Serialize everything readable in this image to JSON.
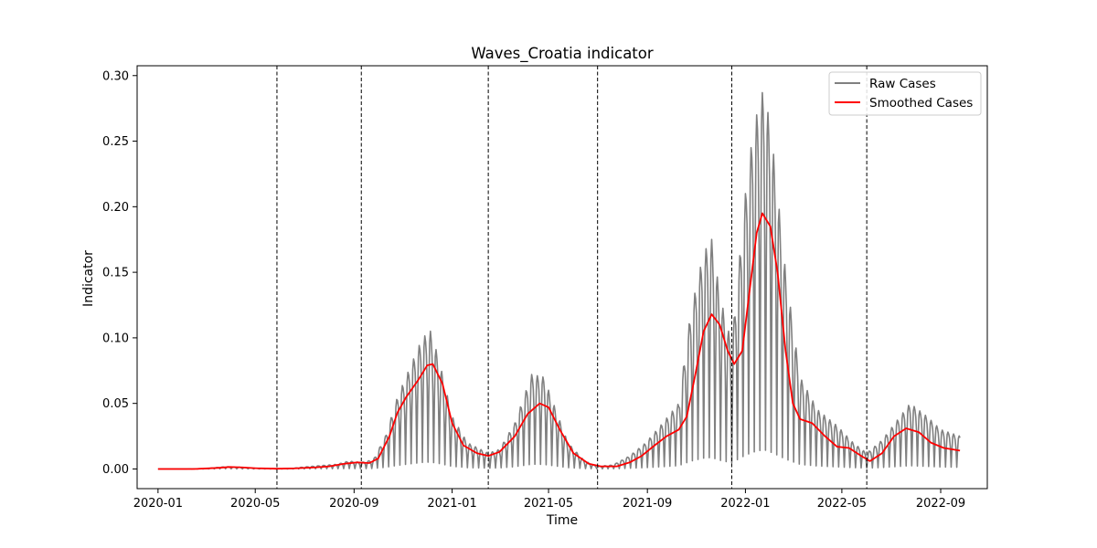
{
  "chart_data": {
    "type": "line",
    "title": "Waves_Croatia indicator",
    "xlabel": "Time",
    "ylabel": "Indicator",
    "x_range": [
      "2019-12-06",
      "2022-10-29"
    ],
    "ylim": [
      -0.015,
      0.3075
    ],
    "x_ticks": [
      "2020-01",
      "2020-05",
      "2020-09",
      "2021-01",
      "2021-05",
      "2021-09",
      "2022-01",
      "2022-05",
      "2022-09"
    ],
    "y_ticks": [
      "0.00",
      "0.05",
      "0.10",
      "0.15",
      "0.20",
      "0.25",
      "0.30"
    ],
    "grid": false,
    "legend_position": "top-right",
    "wave_boundaries": [
      "2020-05-28",
      "2020-09-10",
      "2021-02-15",
      "2021-07-01",
      "2021-12-15",
      "2022-06-01"
    ],
    "series": [
      {
        "name": "Raw Cases",
        "color": "#808080",
        "points": [
          [
            "2020-01-01",
            0.0
          ],
          [
            "2020-02-01",
            0.0
          ],
          [
            "2020-03-01",
            0.0003
          ],
          [
            "2020-03-25",
            0.0018
          ],
          [
            "2020-04-15",
            0.0012
          ],
          [
            "2020-05-01",
            0.0006
          ],
          [
            "2020-05-28",
            0.0002
          ],
          [
            "2020-06-15",
            0.0004
          ],
          [
            "2020-07-01",
            0.0015
          ],
          [
            "2020-07-20",
            0.0025
          ],
          [
            "2020-08-10",
            0.0035
          ],
          [
            "2020-08-25",
            0.006
          ],
          [
            "2020-09-10",
            0.005
          ],
          [
            "2020-09-25",
            0.007
          ],
          [
            "2020-10-10",
            0.025
          ],
          [
            "2020-10-25",
            0.055
          ],
          [
            "2020-11-10",
            0.078
          ],
          [
            "2020-11-25",
            0.1
          ],
          [
            "2020-12-05",
            0.105
          ],
          [
            "2020-12-15",
            0.085
          ],
          [
            "2021-01-01",
            0.04
          ],
          [
            "2021-01-20",
            0.02
          ],
          [
            "2021-02-15",
            0.012
          ],
          [
            "2021-03-01",
            0.015
          ],
          [
            "2021-03-20",
            0.035
          ],
          [
            "2021-04-10",
            0.072
          ],
          [
            "2021-04-25",
            0.07
          ],
          [
            "2021-05-10",
            0.045
          ],
          [
            "2021-05-25",
            0.02
          ],
          [
            "2021-06-15",
            0.006
          ],
          [
            "2021-07-01",
            0.002
          ],
          [
            "2021-07-20",
            0.003
          ],
          [
            "2021-08-10",
            0.01
          ],
          [
            "2021-08-30",
            0.02
          ],
          [
            "2021-09-20",
            0.035
          ],
          [
            "2021-10-10",
            0.05
          ],
          [
            "2021-10-25",
            0.12
          ],
          [
            "2021-11-10",
            0.165
          ],
          [
            "2021-11-20",
            0.175
          ],
          [
            "2021-12-01",
            0.13
          ],
          [
            "2021-12-15",
            0.095
          ],
          [
            "2022-01-01",
            0.21
          ],
          [
            "2022-01-10",
            0.255
          ],
          [
            "2022-01-20",
            0.285
          ],
          [
            "2022-01-25",
            0.29
          ],
          [
            "2022-02-05",
            0.24
          ],
          [
            "2022-02-20",
            0.15
          ],
          [
            "2022-03-10",
            0.07
          ],
          [
            "2022-04-01",
            0.045
          ],
          [
            "2022-04-25",
            0.033
          ],
          [
            "2022-05-15",
            0.02
          ],
          [
            "2022-06-01",
            0.012
          ],
          [
            "2022-06-20",
            0.022
          ],
          [
            "2022-07-10",
            0.038
          ],
          [
            "2022-07-25",
            0.05
          ],
          [
            "2022-08-15",
            0.04
          ],
          [
            "2022-09-01",
            0.03
          ],
          [
            "2022-09-25",
            0.025
          ]
        ]
      },
      {
        "name": "Smoothed Cases",
        "color": "#ff0000",
        "points": [
          [
            "2020-01-01",
            0.0
          ],
          [
            "2020-02-15",
            0.0
          ],
          [
            "2020-03-15",
            0.0008
          ],
          [
            "2020-03-30",
            0.0015
          ],
          [
            "2020-04-15",
            0.0012
          ],
          [
            "2020-05-01",
            0.0006
          ],
          [
            "2020-05-28",
            0.0002
          ],
          [
            "2020-06-20",
            0.0005
          ],
          [
            "2020-07-15",
            0.0012
          ],
          [
            "2020-08-01",
            0.002
          ],
          [
            "2020-08-20",
            0.004
          ],
          [
            "2020-09-05",
            0.005
          ],
          [
            "2020-09-20",
            0.0045
          ],
          [
            "2020-10-01",
            0.008
          ],
          [
            "2020-10-15",
            0.025
          ],
          [
            "2020-10-25",
            0.043
          ],
          [
            "2020-11-05",
            0.055
          ],
          [
            "2020-11-20",
            0.068
          ],
          [
            "2020-12-01",
            0.079
          ],
          [
            "2020-12-08",
            0.08
          ],
          [
            "2020-12-20",
            0.065
          ],
          [
            "2021-01-01",
            0.035
          ],
          [
            "2021-01-15",
            0.018
          ],
          [
            "2021-02-01",
            0.012
          ],
          [
            "2021-02-15",
            0.01
          ],
          [
            "2021-03-01",
            0.013
          ],
          [
            "2021-03-20",
            0.025
          ],
          [
            "2021-04-05",
            0.042
          ],
          [
            "2021-04-20",
            0.05
          ],
          [
            "2021-05-01",
            0.047
          ],
          [
            "2021-05-15",
            0.03
          ],
          [
            "2021-06-01",
            0.012
          ],
          [
            "2021-06-20",
            0.004
          ],
          [
            "2021-07-05",
            0.002
          ],
          [
            "2021-07-25",
            0.002
          ],
          [
            "2021-08-10",
            0.005
          ],
          [
            "2021-08-25",
            0.01
          ],
          [
            "2021-09-10",
            0.018
          ],
          [
            "2021-09-25",
            0.025
          ],
          [
            "2021-10-10",
            0.03
          ],
          [
            "2021-10-20",
            0.04
          ],
          [
            "2021-10-30",
            0.07
          ],
          [
            "2021-11-10",
            0.105
          ],
          [
            "2021-11-20",
            0.118
          ],
          [
            "2021-11-30",
            0.11
          ],
          [
            "2021-12-10",
            0.09
          ],
          [
            "2021-12-18",
            0.08
          ],
          [
            "2021-12-28",
            0.09
          ],
          [
            "2022-01-05",
            0.13
          ],
          [
            "2022-01-15",
            0.18
          ],
          [
            "2022-01-22",
            0.195
          ],
          [
            "2022-02-01",
            0.185
          ],
          [
            "2022-02-10",
            0.15
          ],
          [
            "2022-02-20",
            0.09
          ],
          [
            "2022-03-01",
            0.05
          ],
          [
            "2022-03-10",
            0.038
          ],
          [
            "2022-03-25",
            0.035
          ],
          [
            "2022-04-10",
            0.025
          ],
          [
            "2022-04-25",
            0.017
          ],
          [
            "2022-05-10",
            0.016
          ],
          [
            "2022-05-25",
            0.01
          ],
          [
            "2022-06-05",
            0.006
          ],
          [
            "2022-06-20",
            0.012
          ],
          [
            "2022-07-05",
            0.025
          ],
          [
            "2022-07-20",
            0.031
          ],
          [
            "2022-08-05",
            0.028
          ],
          [
            "2022-08-20",
            0.02
          ],
          [
            "2022-09-05",
            0.016
          ],
          [
            "2022-09-25",
            0.014
          ]
        ]
      }
    ]
  }
}
